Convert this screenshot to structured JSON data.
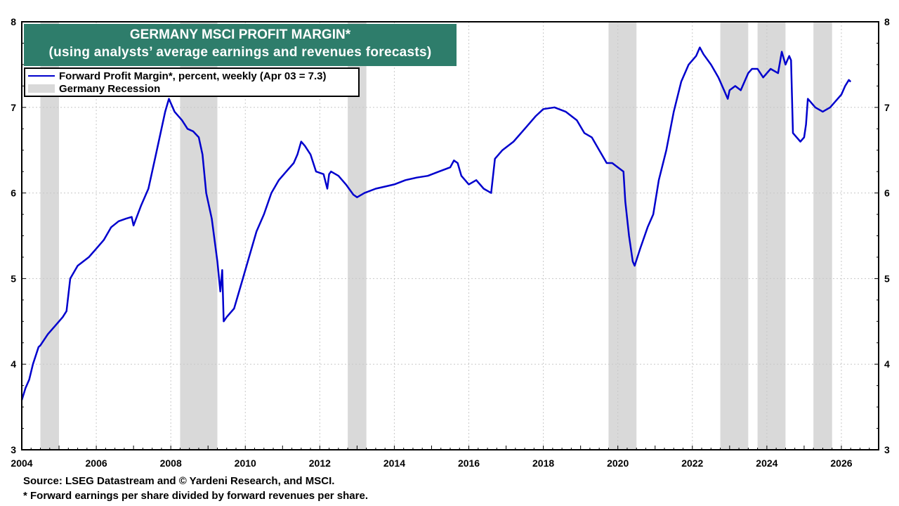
{
  "title": {
    "line1": "GERMANY MSCI PROFIT MARGIN*",
    "line2": "(using analysts’ average earnings and revenues forecasts)"
  },
  "legend": {
    "series_label": "Forward Profit Margin*, percent, weekly (Apr 03 = 7.3)",
    "recession_label": "Germany Recession"
  },
  "footer": {
    "source": "Source: LSEG Datastream and © Yardeni Research, and MSCI.",
    "note": "* Forward earnings per share divided by forward revenues per share."
  },
  "colors": {
    "line": "#0000cd",
    "recession": "#d9d9d9",
    "title_bg": "#2e7d6b",
    "grid": "#c8c8c8"
  },
  "chart_data": {
    "type": "line",
    "title": "GERMANY MSCI PROFIT MARGIN*",
    "xlabel": "",
    "ylabel": "",
    "xlim": [
      2004.0,
      2027.0
    ],
    "ylim": [
      3,
      8
    ],
    "x_ticks": [
      "2004",
      "2006",
      "2008",
      "2010",
      "2012",
      "2014",
      "2016",
      "2018",
      "2020",
      "2022",
      "2024",
      "2026"
    ],
    "y_ticks": [
      "3",
      "4",
      "5",
      "6",
      "7",
      "8"
    ],
    "grid": true,
    "recessions": [
      {
        "start": 2004.5,
        "end": 2005.0
      },
      {
        "start": 2008.25,
        "end": 2009.25
      },
      {
        "start": 2012.75,
        "end": 2013.25
      },
      {
        "start": 2019.75,
        "end": 2020.5
      },
      {
        "start": 2022.75,
        "end": 2023.5
      },
      {
        "start": 2023.75,
        "end": 2024.5
      },
      {
        "start": 2025.25,
        "end": 2025.75
      }
    ],
    "series": [
      {
        "name": "Forward Profit Margin*, percent, weekly (Apr 03 = 7.3)",
        "x": [
          2004.0,
          2004.1,
          2004.2,
          2004.3,
          2004.45,
          2004.5,
          2004.7,
          2004.9,
          2005.1,
          2005.2,
          2005.3,
          2005.5,
          2005.8,
          2006.0,
          2006.2,
          2006.4,
          2006.6,
          2006.8,
          2006.95,
          2007.0,
          2007.2,
          2007.4,
          2007.6,
          2007.75,
          2007.85,
          2007.95,
          2008.1,
          2008.3,
          2008.45,
          2008.6,
          2008.75,
          2008.85,
          2008.95,
          2009.1,
          2009.25,
          2009.33,
          2009.38,
          2009.42,
          2009.5,
          2009.7,
          2009.9,
          2010.1,
          2010.3,
          2010.5,
          2010.7,
          2010.9,
          2011.1,
          2011.3,
          2011.4,
          2011.5,
          2011.6,
          2011.75,
          2011.9,
          2012.1,
          2012.2,
          2012.25,
          2012.3,
          2012.5,
          2012.7,
          2012.9,
          2013.0,
          2013.2,
          2013.5,
          2013.8,
          2014.0,
          2014.3,
          2014.6,
          2014.9,
          2015.2,
          2015.5,
          2015.6,
          2015.7,
          2015.8,
          2015.9,
          2016.0,
          2016.2,
          2016.4,
          2016.6,
          2016.65,
          2016.7,
          2016.9,
          2017.2,
          2017.5,
          2017.8,
          2018.0,
          2018.3,
          2018.6,
          2018.9,
          2019.1,
          2019.3,
          2019.5,
          2019.7,
          2019.85,
          2020.0,
          2020.15,
          2020.2,
          2020.3,
          2020.4,
          2020.45,
          2020.6,
          2020.8,
          2020.95,
          2021.1,
          2021.3,
          2021.5,
          2021.7,
          2021.9,
          2022.1,
          2022.2,
          2022.3,
          2022.5,
          2022.7,
          2022.85,
          2022.95,
          2023.0,
          2023.15,
          2023.3,
          2023.5,
          2023.6,
          2023.75,
          2023.9,
          2024.1,
          2024.3,
          2024.4,
          2024.5,
          2024.55,
          2024.6,
          2024.65,
          2024.7,
          2024.8,
          2024.9,
          2025.0,
          2025.05,
          2025.1,
          2025.3,
          2025.5,
          2025.7,
          2025.9,
          2026.0,
          2026.1,
          2026.2,
          2026.25
        ],
        "values": [
          3.58,
          3.72,
          3.82,
          4.0,
          4.2,
          4.22,
          4.35,
          4.45,
          4.55,
          4.62,
          5.0,
          5.15,
          5.25,
          5.35,
          5.45,
          5.6,
          5.67,
          5.7,
          5.72,
          5.62,
          5.85,
          6.05,
          6.45,
          6.75,
          6.95,
          7.1,
          6.95,
          6.85,
          6.75,
          6.72,
          6.65,
          6.45,
          6.0,
          5.7,
          5.2,
          4.85,
          5.1,
          4.5,
          4.55,
          4.65,
          4.95,
          5.25,
          5.55,
          5.75,
          6.0,
          6.15,
          6.25,
          6.35,
          6.45,
          6.6,
          6.55,
          6.45,
          6.25,
          6.22,
          6.05,
          6.22,
          6.25,
          6.2,
          6.1,
          5.98,
          5.95,
          6.0,
          6.05,
          6.08,
          6.1,
          6.15,
          6.18,
          6.2,
          6.25,
          6.3,
          6.38,
          6.35,
          6.2,
          6.15,
          6.1,
          6.15,
          6.05,
          6.0,
          6.2,
          6.4,
          6.5,
          6.6,
          6.75,
          6.9,
          6.98,
          7.0,
          6.95,
          6.85,
          6.7,
          6.65,
          6.5,
          6.35,
          6.35,
          6.3,
          6.25,
          5.9,
          5.5,
          5.2,
          5.15,
          5.35,
          5.6,
          5.75,
          6.15,
          6.5,
          6.95,
          7.3,
          7.5,
          7.6,
          7.7,
          7.62,
          7.5,
          7.35,
          7.2,
          7.1,
          7.2,
          7.25,
          7.2,
          7.4,
          7.45,
          7.45,
          7.35,
          7.45,
          7.4,
          7.65,
          7.5,
          7.55,
          7.6,
          7.55,
          6.7,
          6.65,
          6.6,
          6.65,
          6.8,
          7.1,
          7.0,
          6.95,
          7.0,
          7.1,
          7.15,
          7.25,
          7.32,
          7.3
        ]
      }
    ]
  }
}
